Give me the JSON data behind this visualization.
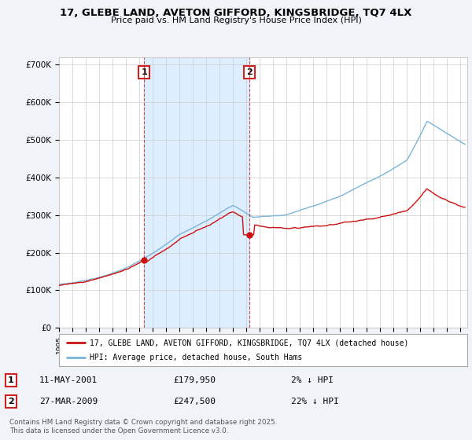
{
  "title_line1": "17, GLEBE LAND, AVETON GIFFORD, KINGSBRIDGE, TQ7 4LX",
  "title_line2": "Price paid vs. HM Land Registry's House Price Index (HPI)",
  "ylabel_ticks": [
    "£0",
    "£100K",
    "£200K",
    "£300K",
    "£400K",
    "£500K",
    "£600K",
    "£700K"
  ],
  "ytick_values": [
    0,
    100000,
    200000,
    300000,
    400000,
    500000,
    600000,
    700000
  ],
  "ylim": [
    0,
    720000
  ],
  "xlim_start": 1995.0,
  "xlim_end": 2025.5,
  "xticks": [
    1995,
    1996,
    1997,
    1998,
    1999,
    2000,
    2001,
    2002,
    2003,
    2004,
    2005,
    2006,
    2007,
    2008,
    2009,
    2010,
    2011,
    2012,
    2013,
    2014,
    2015,
    2016,
    2017,
    2018,
    2019,
    2020,
    2021,
    2022,
    2023,
    2024,
    2025
  ],
  "hpi_color": "#7ab4d8",
  "price_color": "#cc1111",
  "vline1_x": 2001.36,
  "vline2_x": 2009.24,
  "vline_color": "#cc2222",
  "shade_color": "#ddeeff",
  "purchase1_year": 2001.36,
  "purchase1_price": 179950,
  "purchase2_year": 2009.24,
  "purchase2_price": 247500,
  "label_house": "17, GLEBE LAND, AVETON GIFFORD, KINGSBRIDGE, TQ7 4LX (detached house)",
  "label_hpi": "HPI: Average price, detached house, South Hams",
  "annotation1_date": "11-MAY-2001",
  "annotation1_price": "£179,950",
  "annotation1_pct": "2% ↓ HPI",
  "annotation2_date": "27-MAR-2009",
  "annotation2_price": "£247,500",
  "annotation2_pct": "22% ↓ HPI",
  "footer": "Contains HM Land Registry data © Crown copyright and database right 2025.\nThis data is licensed under the Open Government Licence v3.0.",
  "background_color": "#f0f4f8",
  "plot_bg_color": "#ffffff",
  "legend_border_color": "#aaaaaa",
  "grid_color": "#cccccc"
}
